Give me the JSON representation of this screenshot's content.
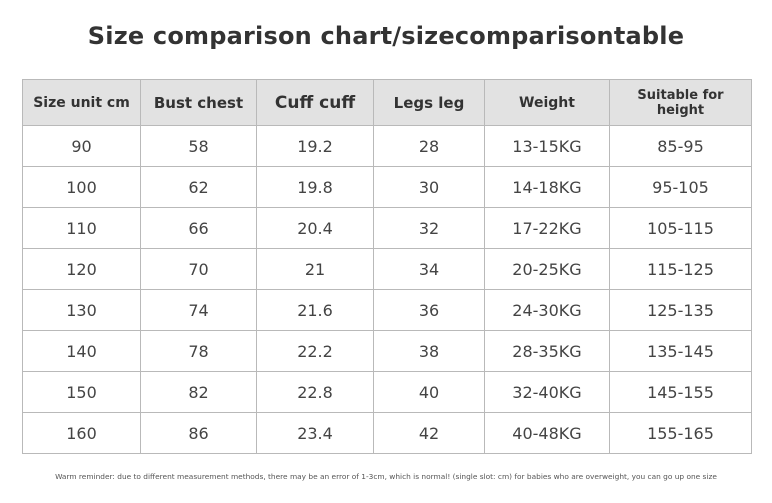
{
  "title": "Size comparison chart/sizecomparisontable",
  "table": {
    "headers": [
      "Size unit cm",
      "Bust chest",
      "Cuff cuff",
      "Legs leg",
      "Weight",
      "Suitable for height"
    ],
    "rows": [
      [
        "90",
        "58",
        "19.2",
        "28",
        "13-15KG",
        "85-95"
      ],
      [
        "100",
        "62",
        "19.8",
        "30",
        "14-18KG",
        "95-105"
      ],
      [
        "110",
        "66",
        "20.4",
        "32",
        "17-22KG",
        "105-115"
      ],
      [
        "120",
        "70",
        "21",
        "34",
        "20-25KG",
        "115-125"
      ],
      [
        "130",
        "74",
        "21.6",
        "36",
        "24-30KG",
        "125-135"
      ],
      [
        "140",
        "78",
        "22.2",
        "38",
        "28-35KG",
        "135-145"
      ],
      [
        "150",
        "82",
        "22.8",
        "40",
        "32-40KG",
        "145-155"
      ],
      [
        "160",
        "86",
        "23.4",
        "42",
        "40-48KG",
        "155-165"
      ]
    ]
  },
  "note": "Warm reminder: due to different measurement methods, there may be an error of 1-3cm, which is normal! (single slot: cm) for babies who are overweight, you can go up one size"
}
